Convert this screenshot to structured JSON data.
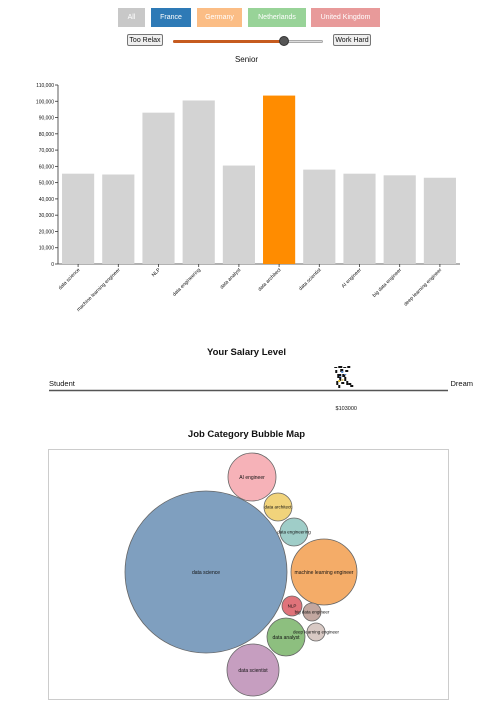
{
  "countries": [
    {
      "label": "All",
      "color": "#c8c8c8"
    },
    {
      "label": "France",
      "color": "#2e7ab6"
    },
    {
      "label": "Germany",
      "color": "#fbbd85"
    },
    {
      "label": "Netherlands",
      "color": "#98d398"
    },
    {
      "label": "United Kingdom",
      "color": "#e89a9a"
    }
  ],
  "effort": {
    "min_label": "Too Relax",
    "max_label": "Work Hard",
    "value_fraction": 0.74,
    "level_label": "Senior",
    "fill_color": "#c65b1f"
  },
  "chart_data": {
    "type": "bar",
    "categories": [
      "data science",
      "machine learning engineer",
      "NLP",
      "data engineering",
      "data analyst",
      "data architect",
      "data scientist",
      "AI engineer",
      "big data engineer",
      "deep learning engineer"
    ],
    "values": [
      55500,
      55000,
      93000,
      100500,
      60500,
      103500,
      58000,
      55500,
      54500,
      53000
    ],
    "ylim": [
      0,
      110000
    ],
    "yticks": [
      "0",
      "10,000",
      "20,000",
      "30,000",
      "40,000",
      "50,000",
      "60,000",
      "70,000",
      "80,000",
      "90,000",
      "100,000",
      "110,000"
    ],
    "highlight_index": 5,
    "bar_color": "#d3d3d3",
    "highlight_color": "#ff8c00"
  },
  "salary": {
    "title": "Your Salary Level",
    "start_label": "Student",
    "end_label": "Dream",
    "value_label": "$103000",
    "value_fraction": 0.74,
    "marker_icon": "runner-icon"
  },
  "bubbles": {
    "title": "Job Category Bubble Map",
    "items": [
      {
        "label": "data science",
        "color": "#7f9fbf"
      },
      {
        "label": "machine learning engineer",
        "color": "#f4ac68"
      },
      {
        "label": "AI engineer",
        "color": "#f6b2b8"
      },
      {
        "label": "data scientist",
        "color": "#c69ec0"
      },
      {
        "label": "data analyst",
        "color": "#8dbf7f"
      },
      {
        "label": "data architect",
        "color": "#f1d37b"
      },
      {
        "label": "data engineering",
        "color": "#9fcdc8"
      },
      {
        "label": "NLP",
        "color": "#e0737a"
      },
      {
        "label": "big data engineer",
        "color": "#c2a7a0"
      },
      {
        "label": "deep learning engineer",
        "color": "#d8c9c4"
      }
    ]
  }
}
